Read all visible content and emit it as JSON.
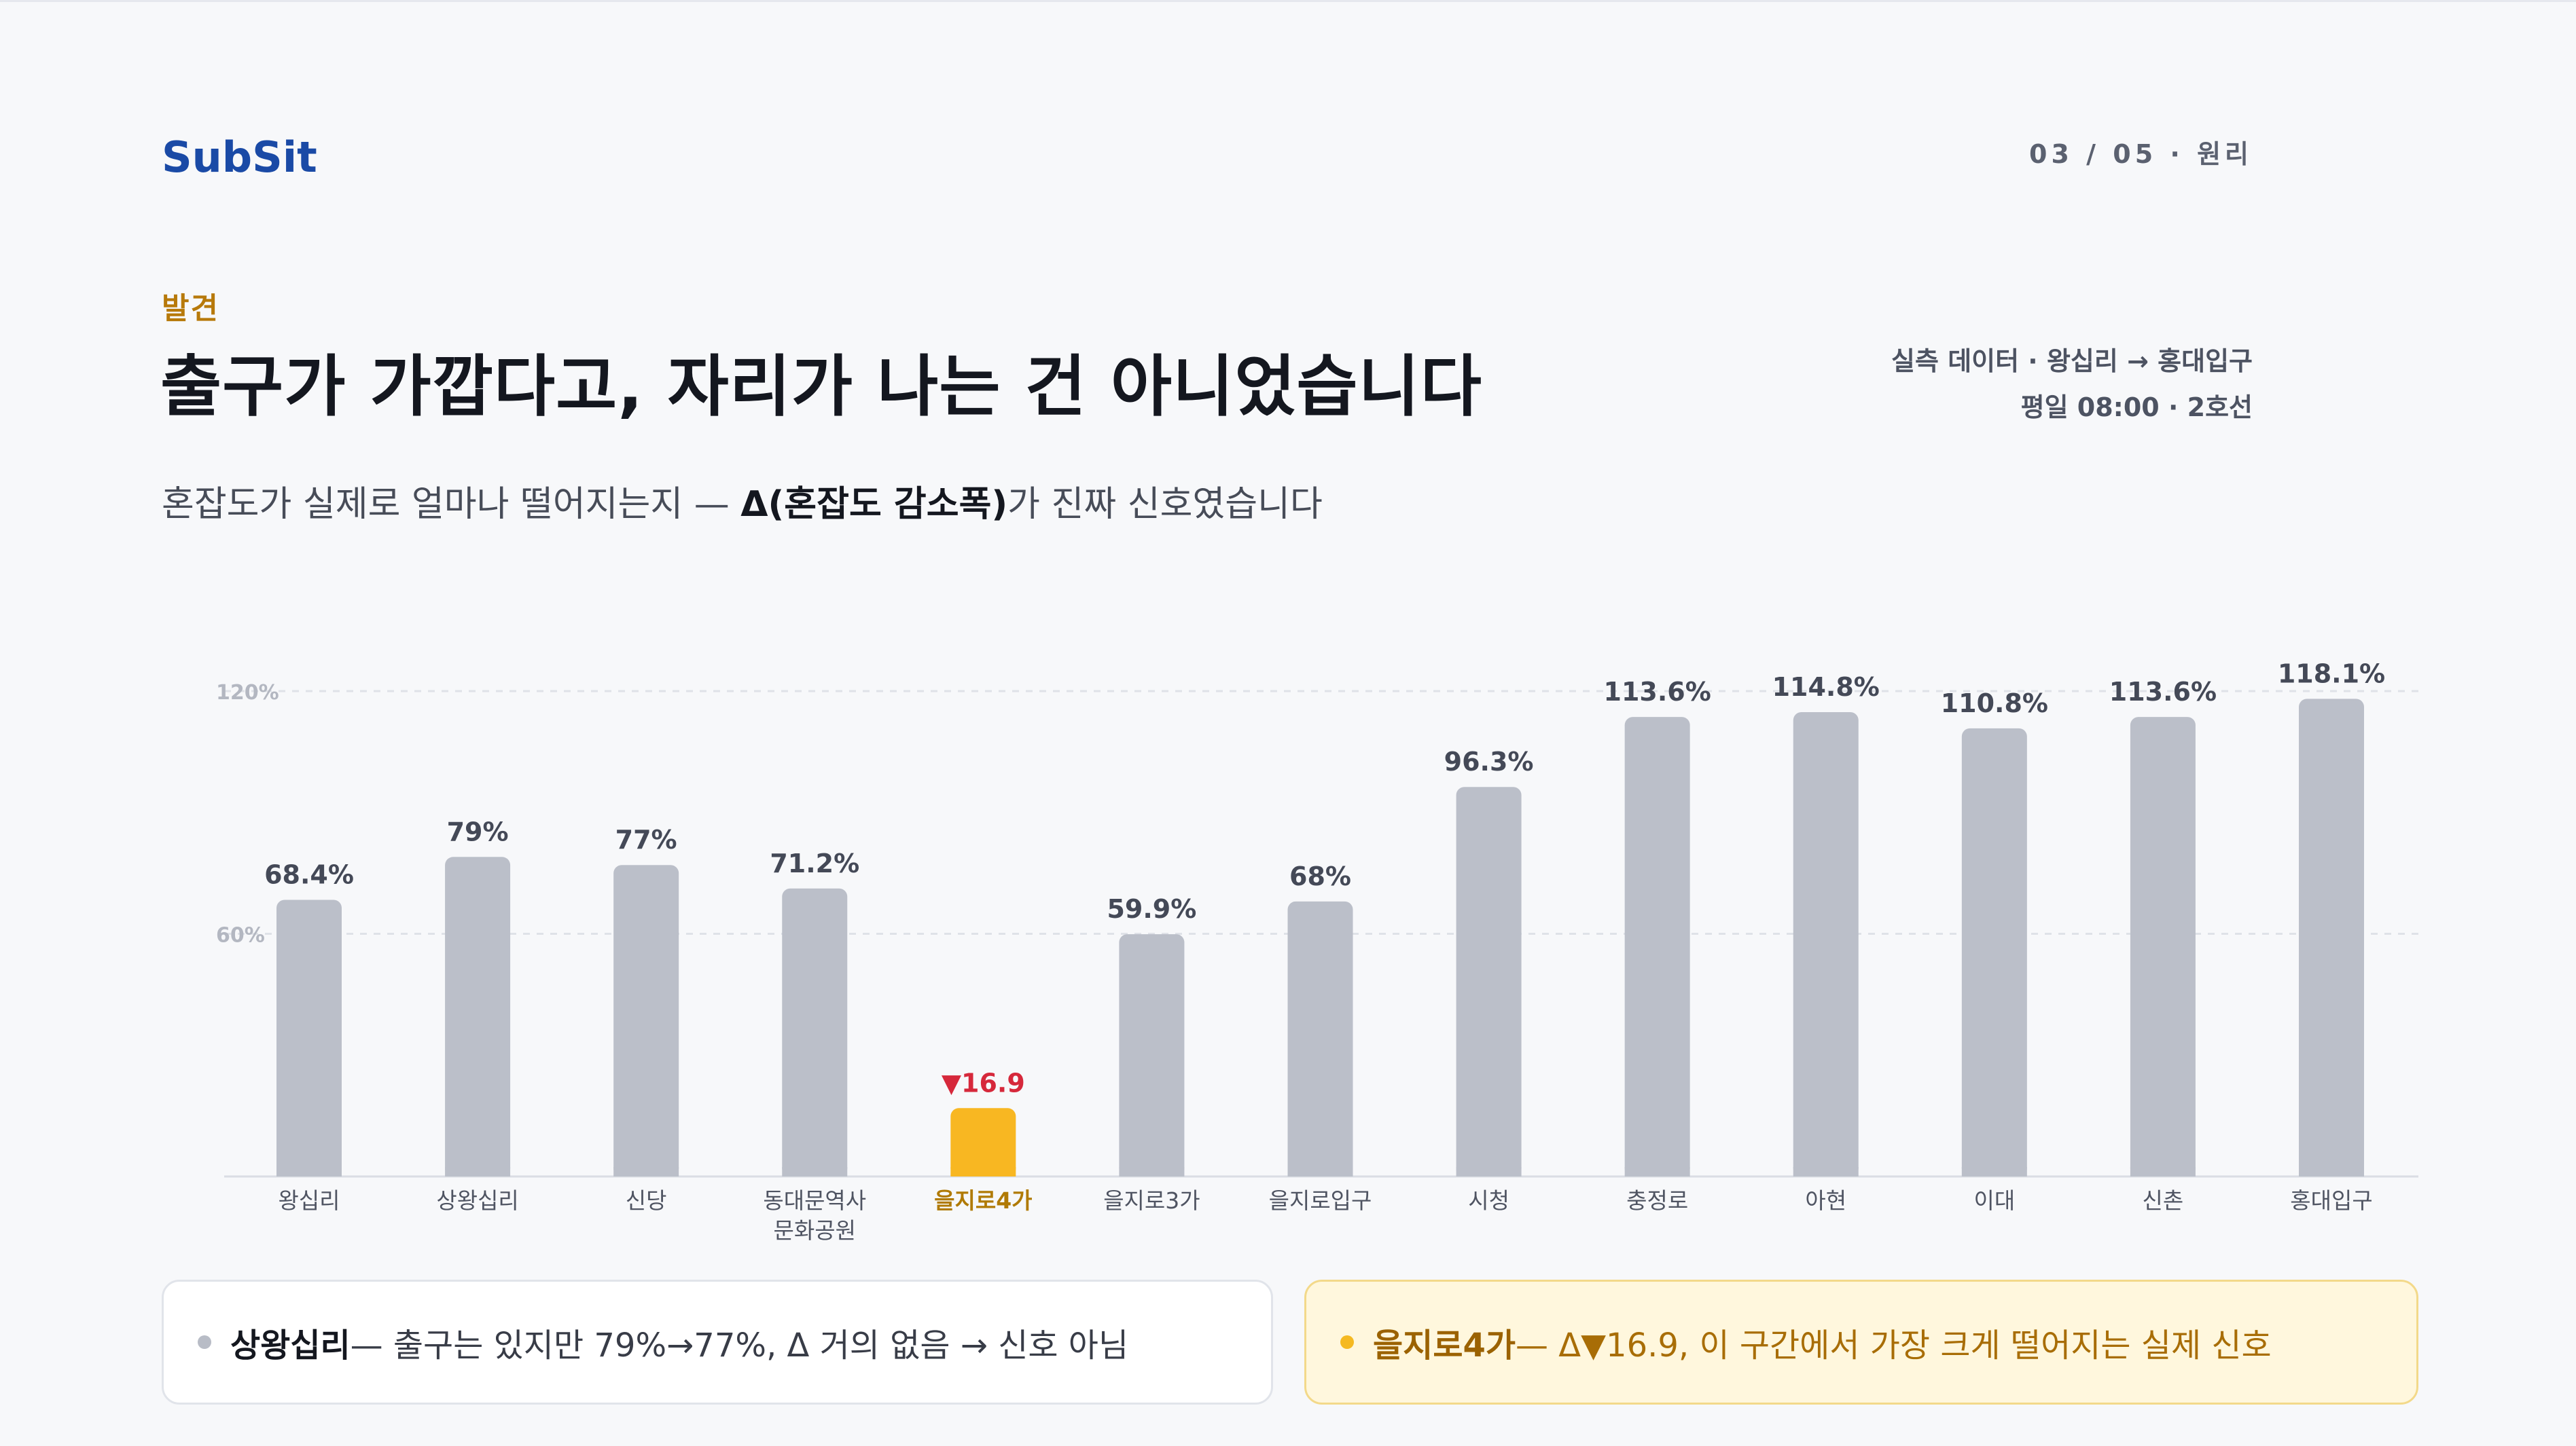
{
  "brand": "SubSit",
  "pager": {
    "page": "03",
    "total": "05",
    "section": "원리"
  },
  "eyebrow": "발견",
  "headline": "출구가 가깝다고, 자리가 나는 건 아니었습니다",
  "meta": {
    "line1": "실측 데이터 · 왕십리 → 홍대입구",
    "line2": "평일 08:00 · 2호선"
  },
  "subtitle": {
    "pre": "혼잡도가 실제로 얼마나 떨어지는지 — ",
    "bold": "Δ(혼잡도 감소폭)",
    "post": "가 진짜 신호였습니다"
  },
  "chart_data": {
    "type": "bar",
    "categories": [
      "왕십리",
      "상왕십리",
      "신당",
      "동대문역사문화공원",
      "을지로4가",
      "을지로3가",
      "을지로입구",
      "시청",
      "충정로",
      "아현",
      "이대",
      "신촌",
      "홍대입구"
    ],
    "category_lines": [
      [
        "왕십리"
      ],
      [
        "상왕십리"
      ],
      [
        "신당"
      ],
      [
        "동대문역사",
        "문화공원"
      ],
      [
        "을지로4가"
      ],
      [
        "을지로3가"
      ],
      [
        "을지로입구"
      ],
      [
        "시청"
      ],
      [
        "충정로"
      ],
      [
        "아현"
      ],
      [
        "이대"
      ],
      [
        "신촌"
      ],
      [
        "홍대입구"
      ]
    ],
    "values": [
      68.4,
      79,
      77,
      71.2,
      16.9,
      59.9,
      68,
      96.3,
      113.6,
      114.8,
      110.8,
      113.6,
      118.1
    ],
    "labels": [
      "68.4%",
      "79%",
      "77%",
      "71.2%",
      "▼16.9",
      "59.9%",
      "68%",
      "96.3%",
      "113.6%",
      "114.8%",
      "110.8%",
      "113.6%",
      "118.1%"
    ],
    "highlight_index": 4,
    "yticks": [
      {
        "value": 60,
        "label": "60%"
      },
      {
        "value": 120,
        "label": "120%"
      }
    ],
    "ylim": [
      0,
      120
    ],
    "grid": true,
    "colors": {
      "bar": "#bbbfc9",
      "highlight": "#f8b722",
      "highlight_label": "#d6283b",
      "label": "#444957",
      "highlight_category": "#b07a05"
    }
  },
  "cards": {
    "left": {
      "bold": "상왕십리",
      "text": " — 출구는 있지만 79%→77%, Δ 거의 없음 → 신호 아님"
    },
    "right": {
      "bold": "을지로4가",
      "text": " — Δ▼16.9, 이 구간에서 가장 크게 떨어지는 실제 신호"
    }
  }
}
